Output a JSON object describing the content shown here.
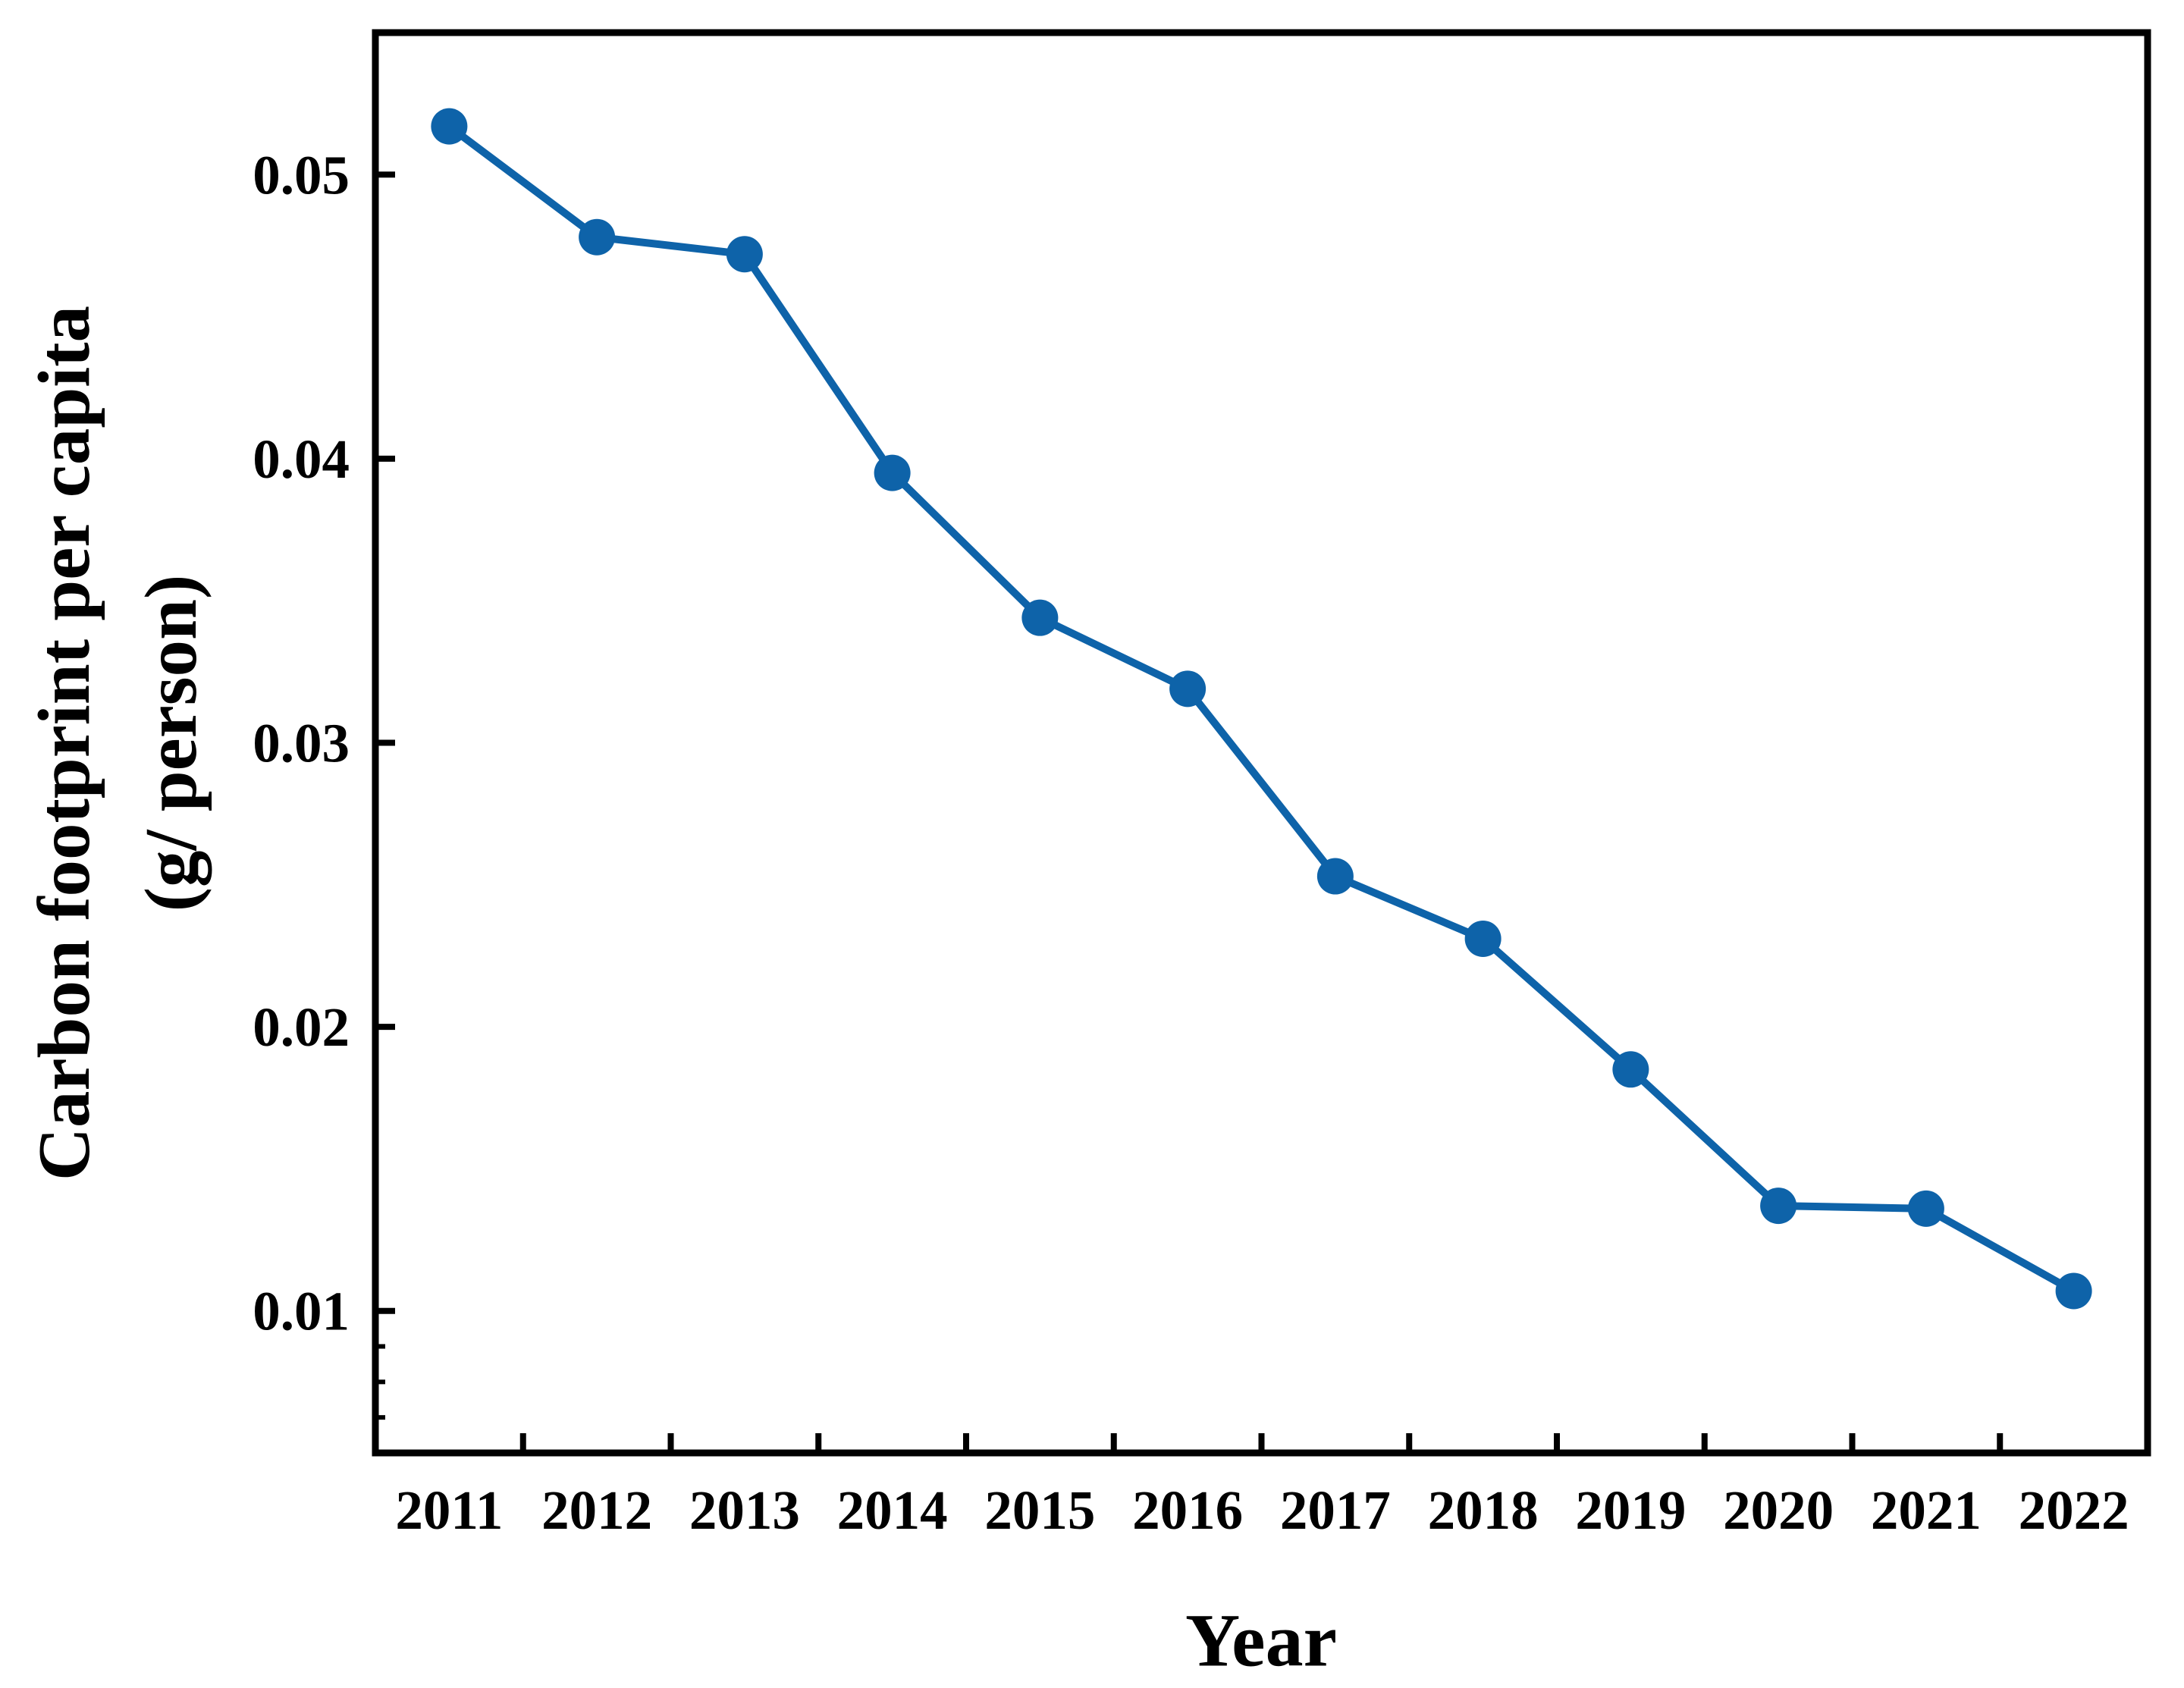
{
  "figure": {
    "xlabel": "Year",
    "ylabel_line1": "Carbon footprint per capita",
    "ylabel_line2": "(g/ person)"
  },
  "chart_data": {
    "type": "line",
    "title": "",
    "xlabel": "Year",
    "ylabel": "Carbon footprint per capita (g/ person)",
    "x": [
      2011,
      2012,
      2013,
      2014,
      2015,
      2016,
      2017,
      2018,
      2019,
      2020,
      2021,
      2022
    ],
    "x_tick_labels": [
      "2011",
      "2012",
      "2013",
      "2014",
      "2015",
      "2016",
      "2017",
      "2018",
      "2019",
      "2020",
      "2021",
      "2022"
    ],
    "series": [
      {
        "name": "Carbon footprint per capita",
        "values": [
          0.0517,
          0.0478,
          0.0472,
          0.0395,
          0.0344,
          0.0319,
          0.0253,
          0.0231,
          0.0185,
          0.0137,
          0.0136,
          0.0107
        ]
      }
    ],
    "y_ticks": [
      0.05,
      0.04,
      0.03,
      0.02,
      0.01
    ],
    "y_tick_labels": [
      "0.05",
      "0.04",
      "0.03",
      "0.02",
      "0.01"
    ],
    "y_minor_ticks": [
      0.00875,
      0.0075,
      0.00625
    ],
    "x_boundary_ticks": [
      2011.5,
      2012.5,
      2013.5,
      2014.5,
      2015.5,
      2016.5,
      2017.5,
      2018.5,
      2019.5,
      2020.5,
      2021.5
    ],
    "xlim": [
      2010.5,
      2022.5
    ],
    "ylim": [
      0.005,
      0.055
    ],
    "grid": false,
    "legend": false,
    "line_color": "#0e63a9",
    "axis_color": "#000000",
    "marker": "circle"
  }
}
